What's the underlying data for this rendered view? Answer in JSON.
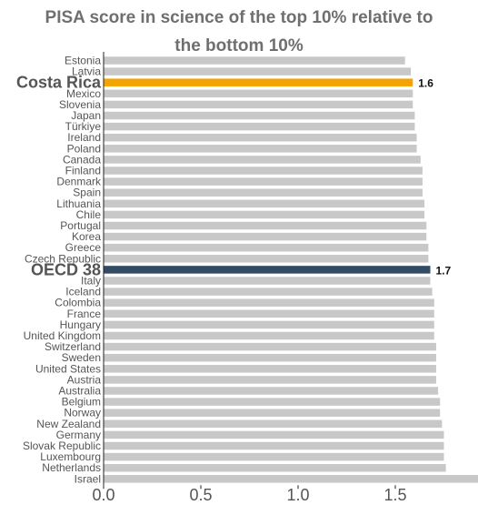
{
  "title_lines": [
    "PISA score in science of the top 10% relative to",
    "the bottom 10%"
  ],
  "colors": {
    "default_bar": "#c8c8c8",
    "highlight_country": "#f5a300",
    "oecd_average": "#344b66",
    "label_text": "#555555",
    "axis_line": "#222222"
  },
  "chart_data": {
    "type": "bar",
    "orientation": "horizontal",
    "title": "PISA score in science of the top 10% relative to the bottom 10%",
    "categories": [
      "Estonia",
      "Latvia",
      "Costa Rica",
      "Mexico",
      "Slovenia",
      "Japan",
      "Türkiye",
      "Ireland",
      "Poland",
      "Canada",
      "Finland",
      "Denmark",
      "Spain",
      "Lithuania",
      "Chile",
      "Portugal",
      "Korea",
      "Greece",
      "Czech Republic",
      "OECD 38",
      "Italy",
      "Iceland",
      "Colombia",
      "France",
      "Hungary",
      "United Kingdom",
      "Switzerland",
      "Sweden",
      "United States",
      "Austria",
      "Australia",
      "Belgium",
      "Norway",
      "New Zealand",
      "Germany",
      "Slovak Republic",
      "Luxembourg",
      "Netherlands",
      "Israel"
    ],
    "values": [
      1.55,
      1.58,
      1.59,
      1.59,
      1.59,
      1.6,
      1.6,
      1.61,
      1.61,
      1.63,
      1.64,
      1.64,
      1.64,
      1.65,
      1.65,
      1.66,
      1.66,
      1.67,
      1.67,
      1.68,
      1.68,
      1.69,
      1.7,
      1.7,
      1.7,
      1.7,
      1.71,
      1.71,
      1.71,
      1.71,
      1.72,
      1.73,
      1.73,
      1.74,
      1.75,
      1.75,
      1.75,
      1.76,
      1.93
    ],
    "highlights": {
      "Costa Rica": {
        "color_key": "highlight_country",
        "value_label": "1.6"
      },
      "OECD 38": {
        "color_key": "oecd_average",
        "value_label": "1.7"
      }
    },
    "x_ticks": [
      "0.0",
      "0.5",
      "1.0",
      "1.5"
    ],
    "xlim": [
      0,
      1.93
    ],
    "grid": false,
    "legend": "none"
  }
}
